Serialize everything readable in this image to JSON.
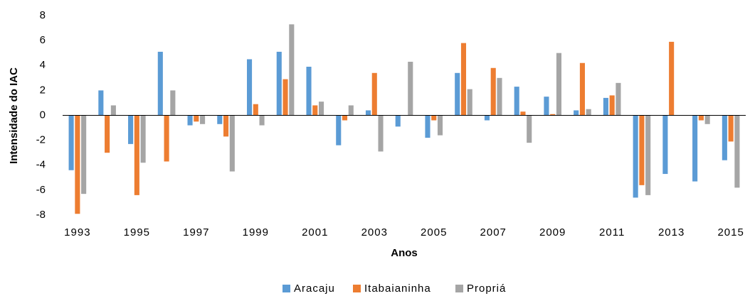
{
  "chart_data": {
    "type": "bar",
    "xlabel": "Anos",
    "ylabel": "Intensidade do IAC",
    "categories": [
      "1993",
      null,
      "1995",
      null,
      "1997",
      null,
      "1999",
      null,
      "2001",
      null,
      "2003",
      null,
      "2005",
      null,
      "2007",
      null,
      "2009",
      null,
      "2011",
      null,
      "2013",
      null,
      "2015"
    ],
    "series": [
      {
        "name": "Aracaju",
        "color": "#5b9bd5",
        "values": [
          -4.4,
          2.0,
          -2.3,
          5.1,
          -0.8,
          -0.7,
          4.5,
          5.1,
          3.9,
          -2.4,
          0.4,
          -0.9,
          -1.8,
          3.4,
          -0.4,
          2.3,
          1.5,
          0.4,
          1.4,
          -6.6,
          -4.7,
          -5.3,
          -3.6
        ]
      },
      {
        "name": "Itabaianinha",
        "color": "#ed7d31",
        "values": [
          -7.9,
          -3.0,
          -6.4,
          -3.7,
          -0.5,
          -1.7,
          0.9,
          2.9,
          0.8,
          -0.4,
          3.4,
          0.0,
          -0.4,
          5.8,
          3.8,
          0.3,
          0.1,
          4.2,
          1.6,
          -5.6,
          5.9,
          -0.4,
          -2.1
        ]
      },
      {
        "name": "Propriá",
        "color": "#a5a5a5",
        "values": [
          -6.3,
          0.8,
          -3.8,
          2.0,
          -0.7,
          -4.5,
          -0.8,
          7.3,
          1.1,
          0.8,
          -2.9,
          4.3,
          -1.6,
          2.1,
          3.0,
          -2.2,
          5.0,
          0.5,
          2.6,
          -6.4,
          0.0,
          -0.7,
          -5.8
        ]
      }
    ],
    "ylim": [
      -8,
      8
    ],
    "yticks": [
      -8,
      -6,
      -4,
      -2,
      0,
      2,
      4,
      6,
      8
    ],
    "grid": false,
    "legend": "bottom"
  }
}
